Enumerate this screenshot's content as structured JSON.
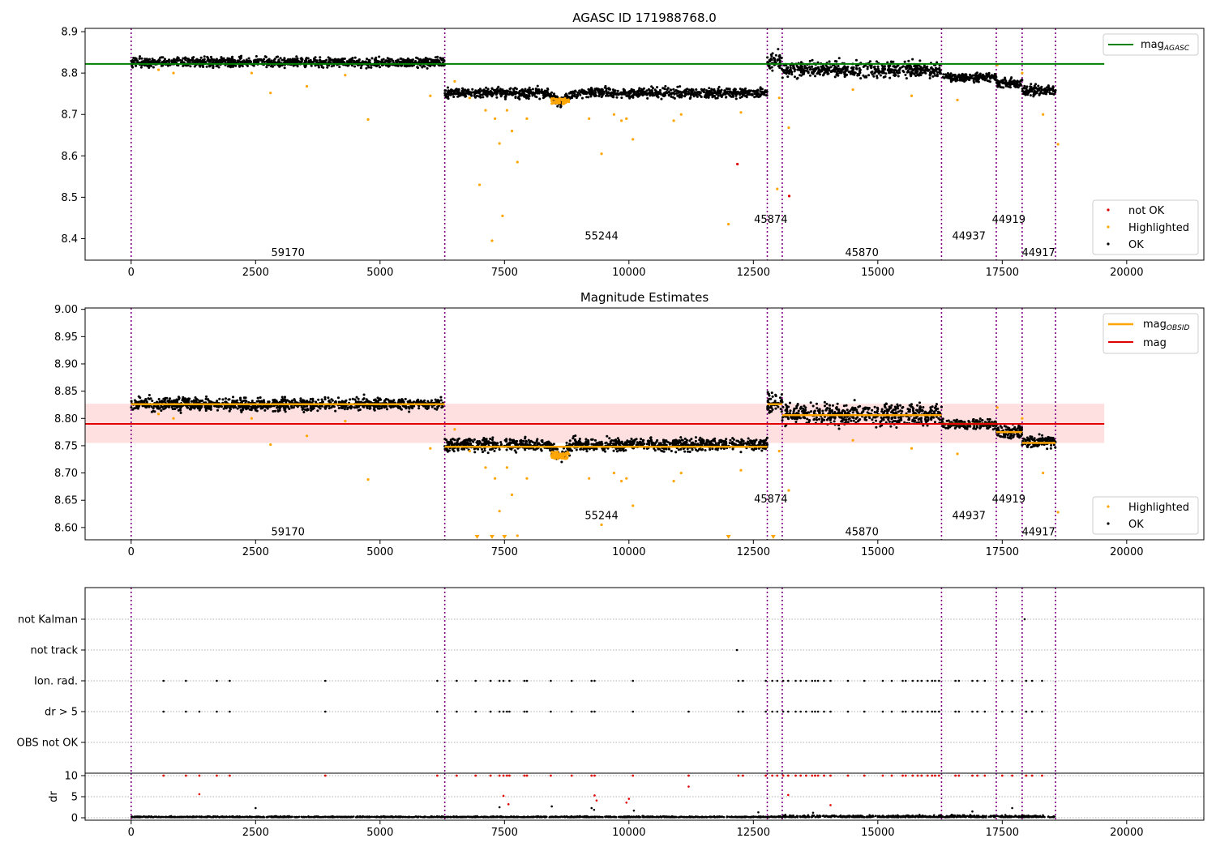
{
  "chart_data": [
    {
      "id": "panel1",
      "type": "scatter",
      "title": "AGASC ID 171988768.0",
      "xlim": [
        -925,
        21550
      ],
      "ylim": [
        8.348,
        8.908
      ],
      "xticks": [
        0,
        2500,
        5000,
        7500,
        10000,
        12500,
        15000,
        17500,
        20000
      ],
      "yticks": [
        8.4,
        8.5,
        8.6,
        8.7,
        8.8,
        8.9
      ],
      "ytick_labels": [
        "8.4",
        "8.5",
        "8.6",
        "8.7",
        "8.8",
        "8.9"
      ],
      "observation_boundaries": [
        0,
        6300,
        12780,
        13080,
        16280,
        17380,
        17900,
        18570
      ],
      "obsid_labels": [
        {
          "text": "59170",
          "x": 3150,
          "y": 8.368
        },
        {
          "text": "55244",
          "x": 9450,
          "y": 8.408
        },
        {
          "text": "45874",
          "x": 12850,
          "y": 8.448
        },
        {
          "text": "45870",
          "x": 14680,
          "y": 8.368
        },
        {
          "text": "44937",
          "x": 16830,
          "y": 8.408
        },
        {
          "text": "44919",
          "x": 17630,
          "y": 8.448
        },
        {
          "text": "44917",
          "x": 18230,
          "y": 8.368
        }
      ],
      "mag_agasc": 8.822,
      "mag_agasc_xrange": [
        0,
        19550
      ],
      "segments": [
        {
          "x0": 0,
          "x1": 6300,
          "mean": 8.826,
          "spread": 0.011
        },
        {
          "x0": 6300,
          "x1": 12780,
          "mean": 8.752,
          "spread": 0.011
        },
        {
          "x0": 12780,
          "x1": 13080,
          "mean": 8.828,
          "spread": 0.02
        },
        {
          "x0": 13080,
          "x1": 16280,
          "mean": 8.808,
          "spread": 0.018
        },
        {
          "x0": 16280,
          "x1": 17380,
          "mean": 8.79,
          "spread": 0.009
        },
        {
          "x0": 17380,
          "x1": 17900,
          "mean": 8.776,
          "spread": 0.012
        },
        {
          "x0": 17900,
          "x1": 18570,
          "mean": 8.758,
          "spread": 0.012
        }
      ],
      "dip": {
        "x": 8620,
        "depth": 0.022
      },
      "highlighted_points": [
        [
          550,
          8.808
        ],
        [
          850,
          8.8
        ],
        [
          2420,
          8.8
        ],
        [
          2800,
          8.752
        ],
        [
          3530,
          8.768
        ],
        [
          4300,
          8.795
        ],
        [
          4760,
          8.688
        ],
        [
          6010,
          8.745
        ],
        [
          6500,
          8.78
        ],
        [
          6800,
          8.74
        ],
        [
          7000,
          8.53
        ],
        [
          7120,
          8.71
        ],
        [
          7250,
          8.395
        ],
        [
          7310,
          8.69
        ],
        [
          7400,
          8.63
        ],
        [
          7460,
          8.455
        ],
        [
          7550,
          8.71
        ],
        [
          7650,
          8.66
        ],
        [
          7760,
          8.585
        ],
        [
          7950,
          8.69
        ],
        [
          9200,
          8.69
        ],
        [
          9450,
          8.605
        ],
        [
          9700,
          8.7
        ],
        [
          9850,
          8.685
        ],
        [
          9950,
          8.69
        ],
        [
          10080,
          8.64
        ],
        [
          10900,
          8.685
        ],
        [
          11050,
          8.7
        ],
        [
          12000,
          8.435
        ],
        [
          12250,
          8.705
        ],
        [
          12980,
          8.52
        ],
        [
          13020,
          8.74
        ],
        [
          13210,
          8.668
        ],
        [
          14500,
          8.76
        ],
        [
          15680,
          8.745
        ],
        [
          16600,
          8.735
        ],
        [
          17400,
          8.82
        ],
        [
          17900,
          8.8
        ],
        [
          18320,
          8.7
        ],
        [
          18620,
          8.628
        ]
      ],
      "not_ok_points": [
        [
          12180,
          8.58
        ],
        [
          13220,
          8.503
        ]
      ],
      "legend": [
        "mag_AGASC"
      ],
      "legend2": [
        "not OK",
        "Highlighted",
        "OK"
      ]
    },
    {
      "id": "panel2",
      "type": "scatter",
      "title": "Magnitude Estimates",
      "xlim": [
        -925,
        21550
      ],
      "ylim": [
        8.5775,
        9.0025
      ],
      "xticks": [
        0,
        2500,
        5000,
        7500,
        10000,
        12500,
        15000,
        17500,
        20000
      ],
      "yticks": [
        8.6,
        8.65,
        8.7,
        8.75,
        8.8,
        8.85,
        8.9,
        8.95,
        9.0
      ],
      "ytick_labels": [
        "8.60",
        "8.65",
        "8.70",
        "8.75",
        "8.80",
        "8.85",
        "8.90",
        "8.95",
        "9.00"
      ],
      "observation_boundaries": [
        0,
        6300,
        12780,
        13080,
        16280,
        17380,
        17900,
        18570
      ],
      "obsid_labels": [
        {
          "text": "59170",
          "x": 3150,
          "y": 8.593
        },
        {
          "text": "55244",
          "x": 9450,
          "y": 8.623
        },
        {
          "text": "45874",
          "x": 12850,
          "y": 8.653
        },
        {
          "text": "45870",
          "x": 14680,
          "y": 8.593
        },
        {
          "text": "44937",
          "x": 16830,
          "y": 8.623
        },
        {
          "text": "44919",
          "x": 17630,
          "y": 8.653
        },
        {
          "text": "44917",
          "x": 18230,
          "y": 8.593
        }
      ],
      "mag": 8.79,
      "mag_band": [
        8.755,
        8.827
      ],
      "mag_band_xrange": [
        -925,
        19550
      ],
      "mag_obsid": [
        {
          "x0": 0,
          "x1": 6300,
          "value": 8.826
        },
        {
          "x0": 6300,
          "x1": 12780,
          "value": 8.748
        },
        {
          "x0": 12780,
          "x1": 13080,
          "value": 8.826
        },
        {
          "x0": 13080,
          "x1": 16280,
          "value": 8.806
        },
        {
          "x0": 16280,
          "x1": 17380,
          "value": 8.79
        },
        {
          "x0": 17380,
          "x1": 17900,
          "value": 8.775
        },
        {
          "x0": 17900,
          "x1": 18570,
          "value": 8.755
        }
      ],
      "offscale_markers": [
        6950,
        7250,
        7500,
        12000,
        12900
      ],
      "legend": [
        "mag_OBSID",
        "mag"
      ],
      "legend2": [
        "Highlighted",
        "OK"
      ]
    },
    {
      "id": "panel3",
      "type": "scatter",
      "categories": [
        "not Kalman",
        "not track",
        "Ion. rad.",
        "dr > 5",
        "OBS not OK"
      ],
      "xlim": [
        -925,
        21550
      ],
      "observation_boundaries": [
        0,
        6300,
        12780,
        13080,
        16280,
        17380,
        17900,
        18570
      ],
      "flags": {
        "not Kalman": [
          17950
        ],
        "not track": [
          12170
        ],
        "Ion. rad.": [
          650,
          1100,
          1720,
          1980,
          3900,
          6150,
          6540,
          6920,
          7220,
          7400,
          7480,
          7600,
          7900,
          7950,
          8430,
          8850,
          9250,
          9310,
          10080,
          12200,
          12290,
          12750,
          12880,
          12980,
          13100,
          13200,
          13350,
          13450,
          13560,
          13680,
          13740,
          13800,
          13920,
          14050,
          14400,
          14730,
          15100,
          15280,
          15500,
          15560,
          15700,
          15800,
          15880,
          16000,
          16090,
          16150,
          16230,
          16560,
          16630,
          16900,
          17000,
          17150,
          17500,
          17700,
          17980,
          18100,
          18300
        ],
        "dr > 5": [
          650,
          1100,
          1370,
          1720,
          1980,
          3900,
          6150,
          6540,
          6920,
          7220,
          7400,
          7480,
          7550,
          7600,
          7900,
          7950,
          8430,
          8850,
          9250,
          9310,
          10080,
          11200,
          12200,
          12290,
          12750,
          12880,
          12980,
          13100,
          13200,
          13350,
          13450,
          13560,
          13680,
          13740,
          13800,
          13920,
          14050,
          14400,
          14730,
          15100,
          15280,
          15500,
          15560,
          15700,
          15800,
          15880,
          16000,
          16090,
          16150,
          16230,
          16560,
          16630,
          16900,
          17000,
          17150,
          17500,
          17700,
          17980,
          18100,
          18300
        ],
        "OBS not OK": []
      }
    },
    {
      "id": "panel4",
      "type": "scatter",
      "ylabel": "dr",
      "xlim": [
        -925,
        21550
      ],
      "ylim": [
        -0.5,
        10.5
      ],
      "yticks": [
        0,
        5,
        10
      ],
      "ytick_labels": [
        "0",
        "5",
        "10"
      ],
      "xticks": [
        0,
        2500,
        5000,
        7500,
        10000,
        12500,
        15000,
        17500,
        20000
      ],
      "observation_boundaries": [
        0,
        6300,
        12780,
        13080,
        16280,
        17380,
        17900,
        18570
      ],
      "red_points": [
        [
          1370,
          5.6
        ],
        [
          7480,
          5.2
        ],
        [
          7580,
          3.2
        ],
        [
          9310,
          5.3
        ],
        [
          9350,
          4.1
        ],
        [
          9950,
          3.6
        ],
        [
          10000,
          4.5
        ],
        [
          11200,
          7.4
        ],
        [
          13200,
          5.4
        ],
        [
          14050,
          3.0
        ]
      ],
      "black_points": [
        [
          2500,
          2.3
        ],
        [
          7400,
          2.5
        ],
        [
          8450,
          2.7
        ],
        [
          9250,
          2.3
        ],
        [
          9300,
          1.9
        ],
        [
          10100,
          1.7
        ],
        [
          17700,
          2.3
        ],
        [
          16900,
          1.5
        ],
        [
          12600,
          1.3
        ],
        [
          13700,
          1.2
        ]
      ]
    }
  ]
}
